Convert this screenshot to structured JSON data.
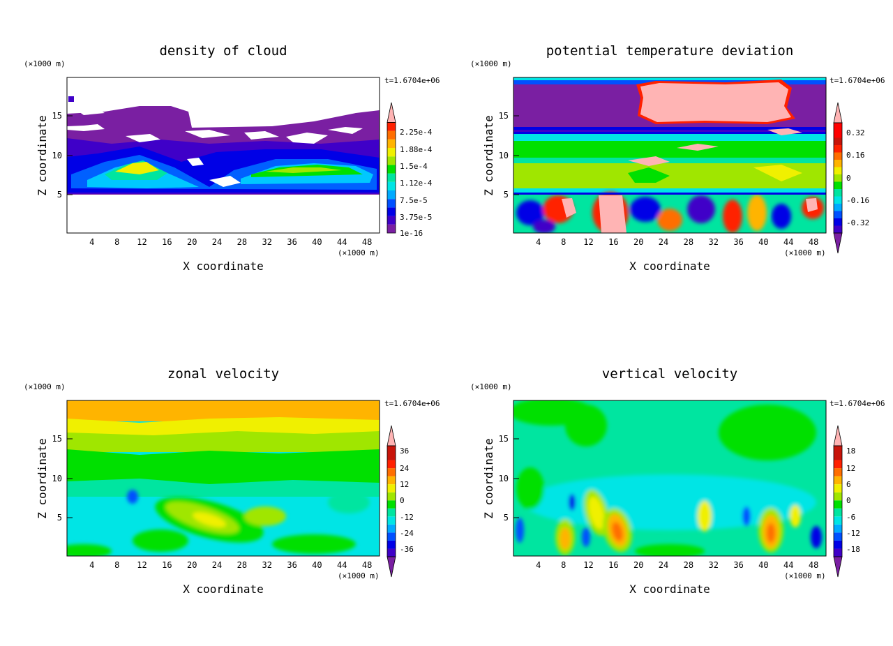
{
  "chart_data": [
    {
      "type": "heatmap",
      "title": "density of cloud",
      "xlabel": "X coordinate",
      "ylabel": "Z coordinate",
      "x_unit": "(×1000 m)",
      "y_unit": "(×1000 m)",
      "time_label": "t=1.6704e+06",
      "xlim": [
        0,
        50
      ],
      "ylim": [
        0,
        19.5
      ],
      "x_ticks": [
        4,
        8,
        12,
        16,
        20,
        24,
        28,
        32,
        36,
        40,
        44,
        48
      ],
      "y_ticks": [
        5,
        10,
        15
      ],
      "colorbar": {
        "labels": [
          "2.25e-4",
          "1.88e-4",
          "1.5e-4",
          "1.12e-4",
          "7.5e-5",
          "3.75e-5",
          "1e-16"
        ],
        "colors": [
          "#7a1fa2",
          "#3f00c8",
          "#0000e6",
          "#0050ff",
          "#00aaff",
          "#00e5e5",
          "#00e5a0",
          "#00e000",
          "#a0e600",
          "#f0f000",
          "#ffb400",
          "#ff6e00",
          "#ff2000",
          "#c8140a",
          "#ffb4b4"
        ],
        "arrow_top": true,
        "arrow_bottom": false
      }
    },
    {
      "type": "heatmap",
      "title": "potential temperature deviation",
      "xlabel": "X coordinate",
      "ylabel": "Z coordinate",
      "x_unit": "(×1000 m)",
      "y_unit": "(×1000 m)",
      "time_label": "t=1.6704e+06",
      "xlim": [
        0,
        50
      ],
      "ylim": [
        0,
        19.5
      ],
      "x_ticks": [
        4,
        8,
        12,
        16,
        20,
        24,
        28,
        32,
        36,
        40,
        44,
        48
      ],
      "y_ticks": [
        5,
        10,
        15
      ],
      "colorbar": {
        "labels": [
          "0.32",
          "0.16",
          "0",
          "-0.16",
          "-0.32"
        ],
        "colors": [
          "#7a1fa2",
          "#3f00c8",
          "#0000e6",
          "#0050ff",
          "#00aaff",
          "#00e5e5",
          "#00e5a0",
          "#00e000",
          "#a0e600",
          "#f0f000",
          "#ffb400",
          "#ff6e00",
          "#ff2000",
          "#c8140a",
          "#ffb4b4"
        ],
        "arrow_top": true,
        "arrow_bottom": true
      }
    },
    {
      "type": "heatmap",
      "title": "zonal velocity",
      "xlabel": "X coordinate",
      "ylabel": "Z coordinate",
      "x_unit": "(×1000 m)",
      "y_unit": "(×1000 m)",
      "time_label": "t=1.6704e+06",
      "xlim": [
        0,
        50
      ],
      "ylim": [
        0,
        19.5
      ],
      "x_ticks": [
        4,
        8,
        12,
        16,
        20,
        24,
        28,
        32,
        36,
        40,
        44,
        48
      ],
      "y_ticks": [
        5,
        10,
        15
      ],
      "colorbar": {
        "labels": [
          "36",
          "24",
          "12",
          "0",
          "-12",
          "-24",
          "-36"
        ],
        "colors": [
          "#7a1fa2",
          "#3f00c8",
          "#0000e6",
          "#0050ff",
          "#00aaff",
          "#00e5e5",
          "#00e5a0",
          "#00e000",
          "#a0e600",
          "#f0f000",
          "#ffb400",
          "#ff6e00",
          "#ff2000",
          "#c8140a",
          "#ffb4b4"
        ],
        "arrow_top": true,
        "arrow_bottom": true
      }
    },
    {
      "type": "heatmap",
      "title": "vertical velocity",
      "xlabel": "X coordinate",
      "ylabel": "Z coordinate",
      "x_unit": "(×1000 m)",
      "y_unit": "(×1000 m)",
      "time_label": "t=1.6704e+06",
      "xlim": [
        0,
        50
      ],
      "ylim": [
        0,
        19.5
      ],
      "x_ticks": [
        4,
        8,
        12,
        16,
        20,
        24,
        28,
        32,
        36,
        40,
        44,
        48
      ],
      "y_ticks": [
        5,
        10,
        15
      ],
      "colorbar": {
        "labels": [
          "18",
          "12",
          "6",
          "0",
          "-6",
          "-12",
          "-18"
        ],
        "colors": [
          "#7a1fa2",
          "#3f00c8",
          "#0000e6",
          "#0050ff",
          "#00aaff",
          "#00e5e5",
          "#00e5a0",
          "#00e000",
          "#a0e600",
          "#f0f000",
          "#ffb400",
          "#ff6e00",
          "#ff2000",
          "#c8140a",
          "#ffb4b4"
        ],
        "arrow_top": true,
        "arrow_bottom": true
      }
    }
  ]
}
